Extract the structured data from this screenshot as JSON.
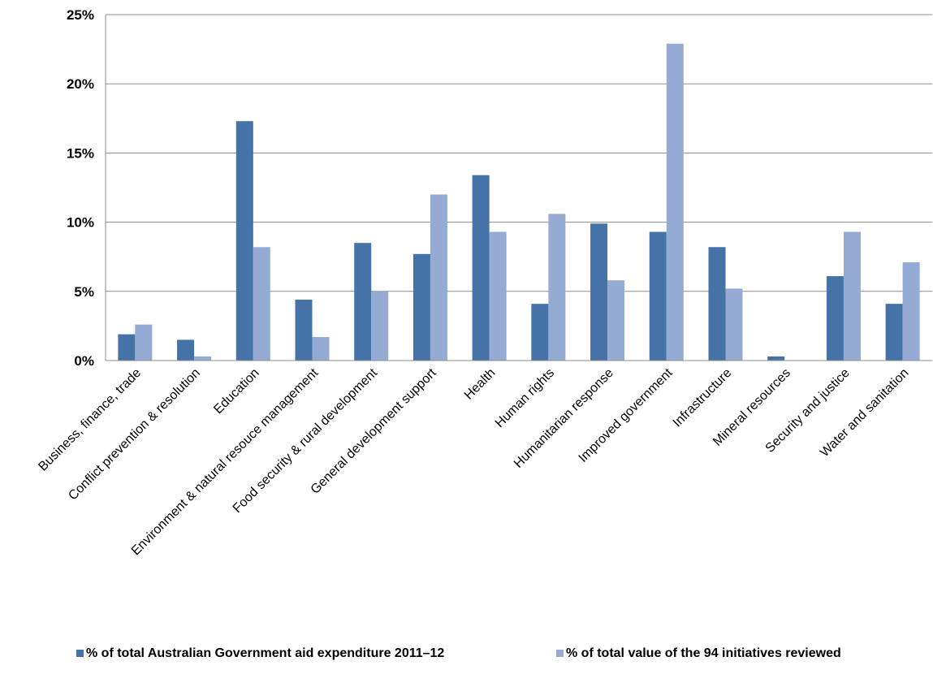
{
  "chart_data": {
    "type": "bar",
    "categories": [
      "Business, finance, trade",
      "Conflict prevention & resolution",
      "Education",
      "Environment & natural resouce management",
      "Food security & rural development",
      "General development support",
      "Health",
      "Human rights",
      "Humanitarian response",
      "Improved government",
      "Infrastructure",
      "Mineral resources",
      "Security and justice",
      "Water and sanitation"
    ],
    "series": [
      {
        "name": "% of total Australian Government aid expenditure 2011–12",
        "color": "#4572a7",
        "values": [
          1.9,
          1.5,
          17.3,
          4.4,
          8.5,
          7.7,
          13.4,
          4.1,
          9.9,
          9.3,
          8.2,
          0.3,
          6.1,
          4.1
        ]
      },
      {
        "name": "% of total value of the 94 initiatives reviewed",
        "color": "#95abd3",
        "values": [
          2.6,
          0.3,
          8.2,
          1.7,
          5.0,
          12.0,
          9.3,
          10.6,
          5.8,
          22.9,
          5.2,
          0.0,
          9.3,
          7.1
        ]
      }
    ],
    "y_ticks": [
      "0%",
      "5%",
      "10%",
      "15%",
      "20%",
      "25%"
    ],
    "ylim": [
      0,
      25
    ],
    "title": "",
    "xlabel": "",
    "ylabel": "",
    "grid": true,
    "legend_position": "bottom"
  }
}
